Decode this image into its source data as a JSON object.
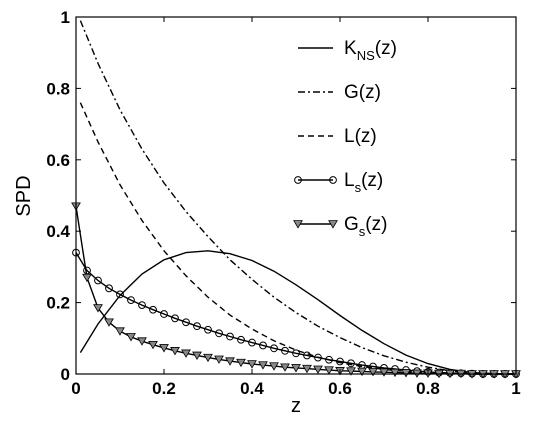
{
  "chart_data": {
    "type": "line",
    "xlabel": "z",
    "ylabel": "SPD",
    "xlim": [
      0,
      1
    ],
    "ylim": [
      0,
      1
    ],
    "x_ticks": [
      "0",
      "0.2",
      "0.4",
      "0.6",
      "0.8",
      "1"
    ],
    "y_ticks": [
      "0",
      "0.2",
      "0.4",
      "0.6",
      "0.8",
      "1"
    ],
    "grid": false,
    "legend_placement": "top-right",
    "series": [
      {
        "legend": {
          "main": "K",
          "sub": "NS",
          "suffix": "(z)"
        },
        "style": "solid",
        "marker": "none",
        "x": [
          0.01,
          0.05,
          0.1,
          0.15,
          0.2,
          0.25,
          0.3,
          0.35,
          0.4,
          0.45,
          0.5,
          0.55,
          0.6,
          0.65,
          0.7,
          0.75,
          0.8,
          0.85,
          0.9,
          0.95,
          1.0
        ],
        "y": [
          0.06,
          0.14,
          0.22,
          0.28,
          0.32,
          0.34,
          0.345,
          0.337,
          0.318,
          0.288,
          0.25,
          0.208,
          0.164,
          0.122,
          0.085,
          0.053,
          0.029,
          0.013,
          0.004,
          0.001,
          0.0
        ]
      },
      {
        "legend": {
          "main": "G",
          "sub": "",
          "suffix": "(z)"
        },
        "style": "dashdot",
        "marker": "none",
        "x": [
          0.01,
          0.05,
          0.1,
          0.15,
          0.2,
          0.25,
          0.3,
          0.35,
          0.4,
          0.45,
          0.5,
          0.55,
          0.6,
          0.65,
          0.7,
          0.75,
          0.8,
          0.85,
          0.9,
          0.95,
          1.0
        ],
        "y": [
          0.99,
          0.87,
          0.74,
          0.63,
          0.535,
          0.455,
          0.385,
          0.32,
          0.265,
          0.215,
          0.172,
          0.134,
          0.102,
          0.074,
          0.051,
          0.033,
          0.019,
          0.009,
          0.003,
          0.001,
          0.0
        ]
      },
      {
        "legend": {
          "main": "L",
          "sub": "",
          "suffix": "(z)"
        },
        "style": "dashed",
        "marker": "none",
        "x": [
          0.01,
          0.05,
          0.1,
          0.15,
          0.2,
          0.25,
          0.3,
          0.35,
          0.4,
          0.45,
          0.5,
          0.55,
          0.6,
          0.65,
          0.7,
          0.75,
          0.8,
          0.85,
          0.9,
          0.95,
          1.0
        ],
        "y": [
          0.76,
          0.65,
          0.53,
          0.43,
          0.345,
          0.275,
          0.215,
          0.165,
          0.126,
          0.093,
          0.067,
          0.047,
          0.032,
          0.021,
          0.013,
          0.007,
          0.003,
          0.001,
          0.0,
          0.0,
          0.0
        ]
      },
      {
        "legend": {
          "main": "L",
          "sub": "s",
          "suffix": "(z)"
        },
        "style": "solid",
        "marker": "circle",
        "x": [
          0.0,
          0.025,
          0.05,
          0.075,
          0.1,
          0.125,
          0.15,
          0.175,
          0.2,
          0.225,
          0.25,
          0.275,
          0.3,
          0.325,
          0.35,
          0.375,
          0.4,
          0.425,
          0.45,
          0.475,
          0.5,
          0.525,
          0.55,
          0.575,
          0.6,
          0.625,
          0.65,
          0.675,
          0.7,
          0.725,
          0.75,
          0.775,
          0.8,
          0.825,
          0.85,
          0.875,
          0.9,
          0.925,
          0.95,
          0.975,
          1.0
        ],
        "y": [
          0.34,
          0.29,
          0.262,
          0.24,
          0.223,
          0.207,
          0.193,
          0.18,
          0.168,
          0.156,
          0.145,
          0.134,
          0.124,
          0.114,
          0.105,
          0.096,
          0.088,
          0.08,
          0.072,
          0.065,
          0.058,
          0.052,
          0.046,
          0.04,
          0.035,
          0.03,
          0.025,
          0.021,
          0.017,
          0.014,
          0.011,
          0.008,
          0.006,
          0.004,
          0.003,
          0.002,
          0.001,
          0.0,
          0.0,
          0.0,
          0.0
        ]
      },
      {
        "legend": {
          "main": "G",
          "sub": "s",
          "suffix": "(z)"
        },
        "style": "solid",
        "marker": "triangle-down",
        "x": [
          0.0,
          0.025,
          0.05,
          0.075,
          0.1,
          0.125,
          0.15,
          0.175,
          0.2,
          0.225,
          0.25,
          0.275,
          0.3,
          0.325,
          0.35,
          0.375,
          0.4,
          0.425,
          0.45,
          0.475,
          0.5,
          0.525,
          0.55,
          0.575,
          0.6,
          0.625,
          0.65,
          0.675,
          0.7,
          0.725,
          0.75,
          0.775,
          0.8,
          0.825,
          0.85,
          0.875,
          0.9,
          0.925,
          0.95,
          0.975,
          1.0
        ],
        "y": [
          0.47,
          0.27,
          0.185,
          0.145,
          0.12,
          0.104,
          0.092,
          0.082,
          0.073,
          0.065,
          0.058,
          0.052,
          0.046,
          0.041,
          0.036,
          0.032,
          0.028,
          0.025,
          0.022,
          0.019,
          0.017,
          0.015,
          0.013,
          0.011,
          0.009,
          0.008,
          0.007,
          0.006,
          0.005,
          0.004,
          0.003,
          0.002,
          0.002,
          0.001,
          0.001,
          0.001,
          0.0,
          0.0,
          0.0,
          0.0,
          0.0
        ]
      }
    ]
  }
}
